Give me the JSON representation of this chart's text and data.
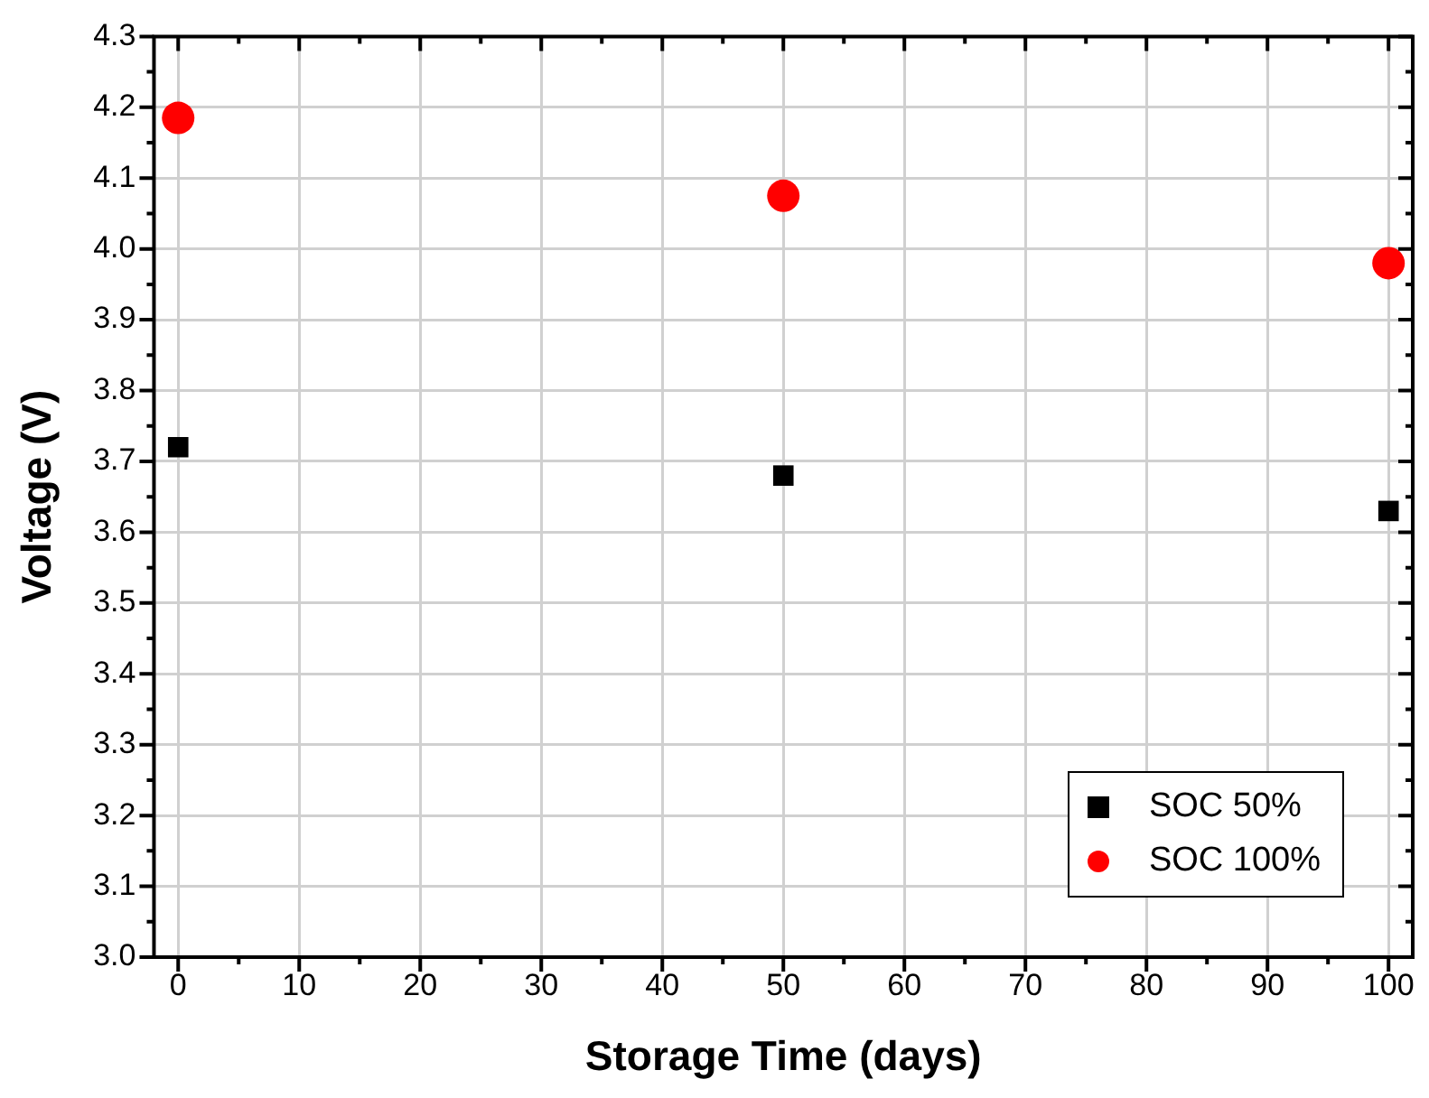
{
  "chart_data": {
    "type": "scatter",
    "xlabel": "Storage Time (days)",
    "ylabel": "Voltage (V)",
    "xlim": [
      -2,
      102
    ],
    "xticks": [
      0,
      10,
      20,
      30,
      40,
      50,
      60,
      70,
      80,
      90,
      100
    ],
    "ylim": [
      3.0,
      4.3
    ],
    "yticks": [
      {
        "value": 3,
        "label": "3.0"
      },
      3.1,
      3.2,
      3.3,
      3.4,
      3.5,
      3.6,
      3.7,
      3.8,
      3.9,
      {
        "value": 4,
        "label": "4.0"
      },
      4.1,
      4.2,
      4.3
    ],
    "grid": true,
    "legend": "bottom right",
    "series": [
      {
        "name": "SOC 50%",
        "color": "#000000",
        "marker": "square",
        "x": [
          0,
          50,
          100
        ],
        "values": [
          3.72,
          3.68,
          3.63
        ]
      },
      {
        "name": "SOC 100%",
        "color": "#ff0000",
        "marker": "circle",
        "x": [
          0,
          50,
          100
        ],
        "values": [
          4.185,
          4.075,
          3.98
        ]
      }
    ]
  }
}
